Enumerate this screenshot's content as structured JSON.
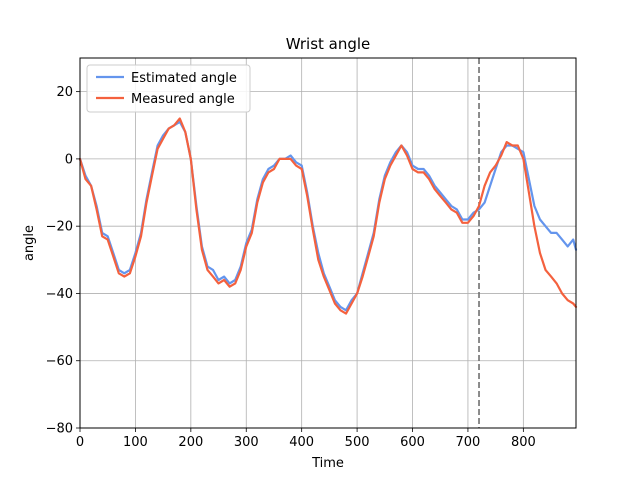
{
  "chart_data": {
    "type": "line",
    "title": "Wrist angle",
    "xlabel": "Time",
    "ylabel": "angle",
    "xlim": [
      0,
      895
    ],
    "ylim": [
      -80,
      30
    ],
    "xticks": [
      0,
      100,
      200,
      300,
      400,
      500,
      600,
      700,
      800
    ],
    "yticks": [
      -80,
      -60,
      -40,
      -20,
      0,
      20
    ],
    "grid": true,
    "legend": "top-left",
    "vline": {
      "x": 720,
      "color": "#707070",
      "style": "dashed"
    },
    "series": [
      {
        "name": "Estimated angle",
        "color": "#6495ed",
        "x": [
          0,
          10,
          20,
          30,
          40,
          50,
          60,
          70,
          80,
          90,
          100,
          110,
          120,
          130,
          140,
          150,
          160,
          170,
          180,
          190,
          200,
          210,
          220,
          230,
          240,
          250,
          260,
          270,
          280,
          290,
          300,
          310,
          320,
          330,
          340,
          350,
          360,
          370,
          380,
          390,
          400,
          410,
          420,
          430,
          440,
          450,
          460,
          470,
          480,
          490,
          500,
          510,
          520,
          530,
          540,
          550,
          560,
          570,
          580,
          590,
          600,
          610,
          620,
          630,
          640,
          650,
          660,
          670,
          680,
          690,
          700,
          710,
          720,
          730,
          740,
          750,
          760,
          770,
          780,
          790,
          800,
          810,
          820,
          830,
          840,
          850,
          860,
          870,
          880,
          890,
          895
        ],
        "y": [
          0,
          -5,
          -8,
          -14,
          -22,
          -23,
          -28,
          -33,
          -34,
          -33,
          -28,
          -22,
          -12,
          -4,
          4,
          7,
          9,
          10,
          11,
          8,
          0,
          -14,
          -26,
          -32,
          -33,
          -36,
          -35,
          -37,
          -36,
          -32,
          -25,
          -21,
          -12,
          -6,
          -3,
          -2,
          0,
          0,
          1,
          -1,
          -2,
          -10,
          -20,
          -28,
          -34,
          -38,
          -42,
          -44,
          -45,
          -42,
          -40,
          -34,
          -28,
          -22,
          -12,
          -5,
          -1,
          2,
          4,
          2,
          -2,
          -3,
          -3,
          -5,
          -8,
          -10,
          -12,
          -14,
          -15,
          -18,
          -18,
          -16,
          -15,
          -13,
          -8,
          -3,
          2,
          4,
          4,
          3,
          2,
          -6,
          -14,
          -18,
          -20,
          -22,
          -22,
          -24,
          -26,
          -24,
          -27
        ]
      },
      {
        "name": "Measured angle",
        "color": "#f4613e",
        "x": [
          0,
          10,
          20,
          30,
          40,
          50,
          60,
          70,
          80,
          90,
          100,
          110,
          120,
          130,
          140,
          150,
          160,
          170,
          180,
          190,
          200,
          210,
          220,
          230,
          240,
          250,
          260,
          270,
          280,
          290,
          300,
          310,
          320,
          330,
          340,
          350,
          360,
          370,
          380,
          390,
          400,
          410,
          420,
          430,
          440,
          450,
          460,
          470,
          480,
          490,
          500,
          510,
          520,
          530,
          540,
          550,
          560,
          570,
          580,
          590,
          600,
          610,
          620,
          630,
          640,
          650,
          660,
          670,
          680,
          690,
          700,
          710,
          720,
          730,
          740,
          750,
          760,
          770,
          780,
          790,
          800,
          810,
          820,
          830,
          840,
          850,
          860,
          870,
          880,
          890,
          895
        ],
        "y": [
          0,
          -6,
          -8,
          -15,
          -23,
          -24,
          -29,
          -34,
          -35,
          -34,
          -29,
          -23,
          -13,
          -5,
          3,
          6,
          9,
          10,
          12,
          8,
          0,
          -15,
          -27,
          -33,
          -35,
          -37,
          -36,
          -38,
          -37,
          -33,
          -26,
          -22,
          -13,
          -7,
          -4,
          -3,
          0,
          0,
          0,
          -2,
          -3,
          -11,
          -21,
          -30,
          -35,
          -39,
          -43,
          -45,
          -46,
          -43,
          -40,
          -35,
          -29,
          -23,
          -13,
          -6,
          -2,
          1,
          4,
          1,
          -3,
          -4,
          -4,
          -6,
          -9,
          -11,
          -13,
          -15,
          -16,
          -19,
          -19,
          -17,
          -14,
          -8,
          -4,
          -2,
          1,
          5,
          4,
          4,
          0,
          -10,
          -20,
          -28,
          -33,
          -35,
          -37,
          -40,
          -42,
          -43,
          -44
        ]
      }
    ]
  }
}
